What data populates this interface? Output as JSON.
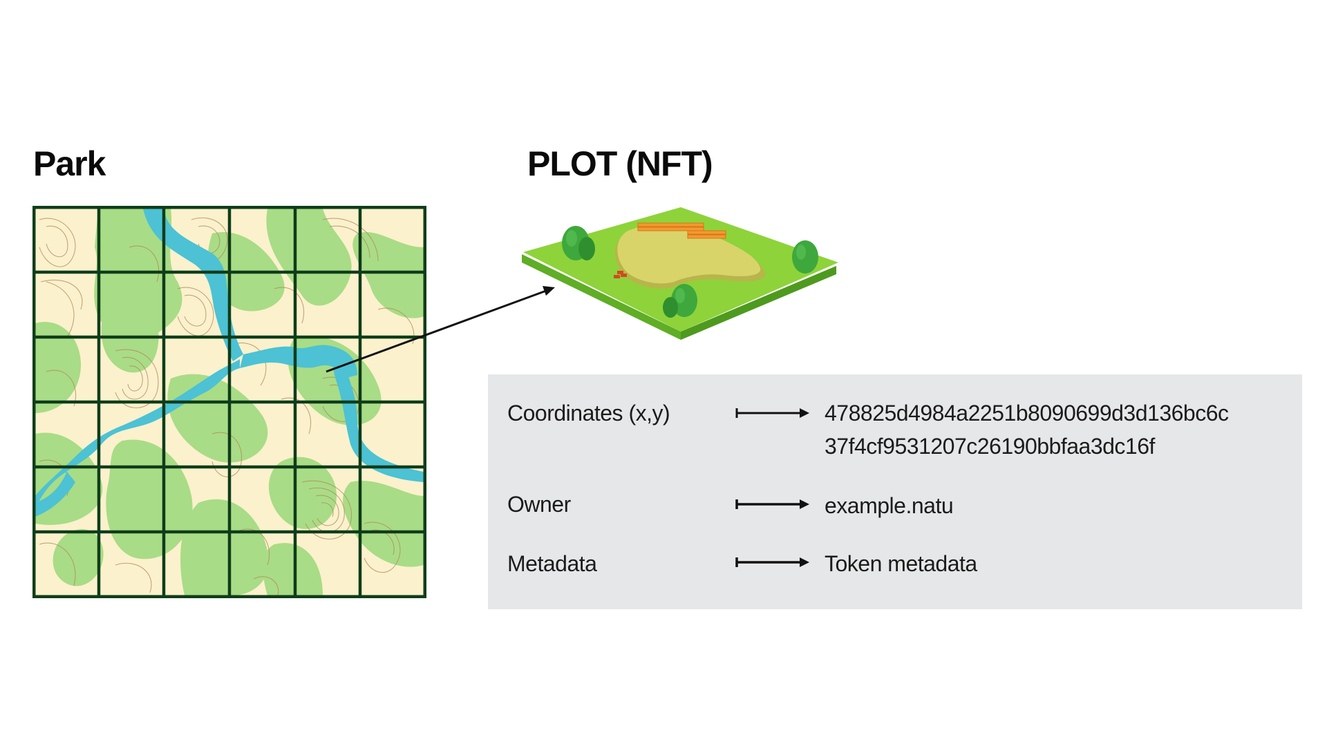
{
  "park": {
    "title": "Park"
  },
  "plot": {
    "title": "PLOT (NFT)"
  },
  "info": {
    "coordinates": {
      "label": "Coordinates (x,y)",
      "value_line1": "478825d4984a2251b8090699d3d136bc6c",
      "value_line2": "37f4cf9531207c26190bbfaa3dc16f"
    },
    "owner": {
      "label": "Owner",
      "value": "example.natu"
    },
    "metadata": {
      "label": "Metadata",
      "value": "Token metadata"
    }
  },
  "colors": {
    "grid_line": "#0f3d1a",
    "parchment": "#fbf1cd",
    "vegetation": "#a9dc86",
    "river": "#4cc2d4",
    "contour": "#b08a5a",
    "panel_bg": "#e6e7e9",
    "plot_grass": "#8ed33a",
    "plot_sand": "#d9d46a",
    "plot_fence": "#f29a2e",
    "tree": "#3ea83c"
  }
}
